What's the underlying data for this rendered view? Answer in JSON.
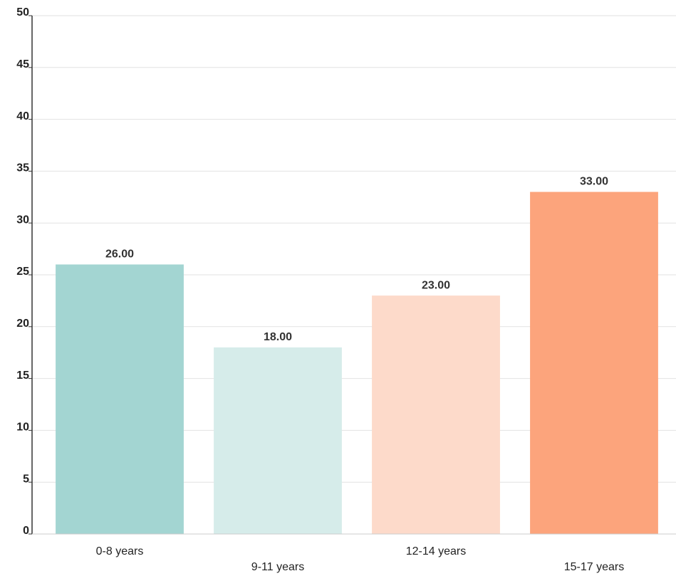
{
  "chart_data": {
    "type": "bar",
    "categories": [
      "0-8 years",
      "9-11 years",
      "12-14 years",
      "15-17 years"
    ],
    "values": [
      26,
      18,
      23,
      33
    ],
    "value_labels": [
      "26.00",
      "18.00",
      "23.00",
      "33.00"
    ],
    "colors": [
      "#a3d5d2",
      "#d6ecea",
      "#fddaca",
      "#fca47c"
    ],
    "ylim": [
      0,
      50
    ],
    "yticks": [
      0,
      5,
      10,
      15,
      20,
      25,
      30,
      35,
      40,
      45,
      50
    ],
    "grid": true
  }
}
